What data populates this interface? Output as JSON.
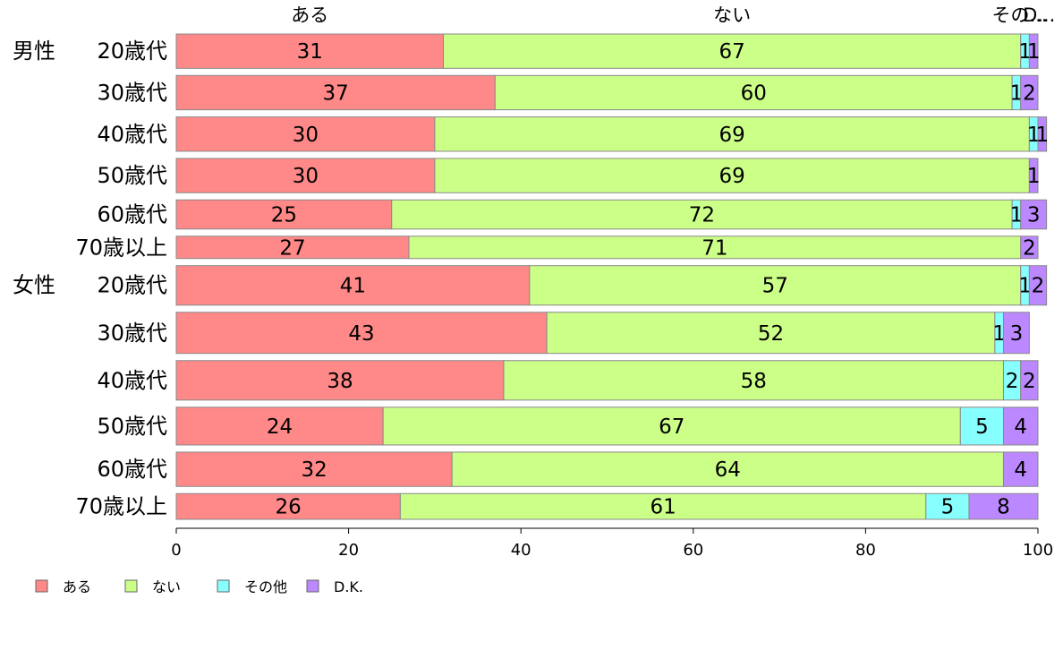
{
  "chart_data": {
    "type": "bar",
    "orientation": "horizontal",
    "stacked": true,
    "title": "",
    "xlabel": "",
    "ylabel": "",
    "xlim": [
      0,
      100
    ],
    "x_ticks": [
      "0",
      "20",
      "40",
      "60",
      "80",
      "100"
    ],
    "grid": false,
    "legend_position": "bottom-left",
    "top_labels": [
      "ある",
      "ない",
      "その...",
      "D..."
    ],
    "groups": [
      {
        "name": "男性",
        "first_row": 0
      },
      {
        "name": "女性",
        "first_row": 6
      }
    ],
    "categories": [
      "20歳代",
      "30歳代",
      "40歳代",
      "50歳代",
      "60歳代",
      "70歳以上",
      "20歳代",
      "30歳代",
      "40歳代",
      "50歳代",
      "60歳代",
      "70歳以上"
    ],
    "row_weights": [
      40,
      40,
      40,
      40,
      34,
      26,
      46,
      48,
      46,
      44,
      40,
      30
    ],
    "series": [
      {
        "name": "ある",
        "color": "#ff8888",
        "values": [
          31,
          37,
          30,
          30,
          25,
          27,
          41,
          43,
          38,
          24,
          32,
          26
        ]
      },
      {
        "name": "ない",
        "color": "#ccff88",
        "values": [
          67,
          60,
          69,
          69,
          72,
          71,
          57,
          52,
          58,
          67,
          64,
          61
        ]
      },
      {
        "name": "その他",
        "color": "#88ffff",
        "values": [
          1,
          1,
          1,
          0,
          1,
          0,
          1,
          1,
          2,
          5,
          0,
          5
        ]
      },
      {
        "name": "D.K.",
        "color": "#bb88ff",
        "values": [
          1,
          2,
          1,
          1,
          3,
          2,
          2,
          3,
          2,
          4,
          4,
          8
        ]
      }
    ]
  }
}
